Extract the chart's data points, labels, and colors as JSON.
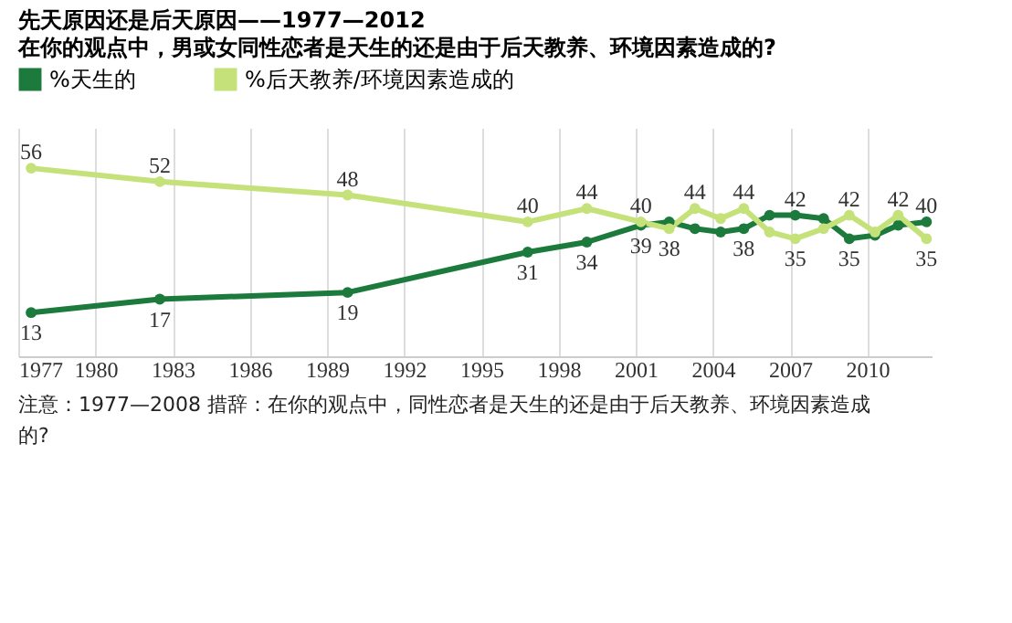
{
  "chart_data": {
    "type": "line",
    "title": "先天原因还是后天原因——1977—2012",
    "subtitle": "在你的观点中，男或女同性恋者是天生的还是由于后天教养、环境因素造成的?",
    "x": [
      1977.5,
      1982.5,
      1989.8,
      1996.8,
      1999.1,
      2001.2,
      2002.3,
      2003.3,
      2004.3,
      2005.2,
      2006.2,
      2007.2,
      2008.3,
      2009.3,
      2010.3,
      2011.2,
      2012.3
    ],
    "xlim": [
      1977,
      2012.5
    ],
    "xticks": [
      1977,
      1980,
      1983,
      1986,
      1989,
      1992,
      1995,
      1998,
      2001,
      2004,
      2007,
      2010
    ],
    "ylim": [
      0,
      68
    ],
    "series": [
      {
        "name": "%天生的",
        "color": "#1b7a3c",
        "values": [
          13,
          17,
          19,
          31,
          34,
          39,
          40,
          38,
          37,
          38,
          42,
          42,
          41,
          35,
          36,
          39,
          40
        ],
        "value_labels": [
          "13",
          "17",
          "19",
          "31",
          "34",
          "39",
          null,
          null,
          null,
          "38",
          null,
          "42",
          null,
          "35",
          null,
          null,
          "40"
        ]
      },
      {
        "name": "%后天教养/环境因素造成的",
        "color": "#c5e17a",
        "values": [
          56,
          52,
          48,
          40,
          44,
          40,
          38,
          44,
          41,
          44,
          37,
          35,
          38,
          42,
          37,
          42,
          35
        ],
        "value_labels": [
          "56",
          "52",
          "48",
          "40",
          "44",
          "40",
          "38",
          "44",
          null,
          "44",
          null,
          "35",
          null,
          "42",
          null,
          "42",
          "35"
        ]
      }
    ],
    "marker": "circle",
    "grid": "x",
    "legend": "top",
    "tick_labels": "x",
    "annotations": [
      "注意：1977—2008 措辞：在你的观点中，同性恋者是天生的还是由于后天教养、环境因素造成的?"
    ]
  }
}
